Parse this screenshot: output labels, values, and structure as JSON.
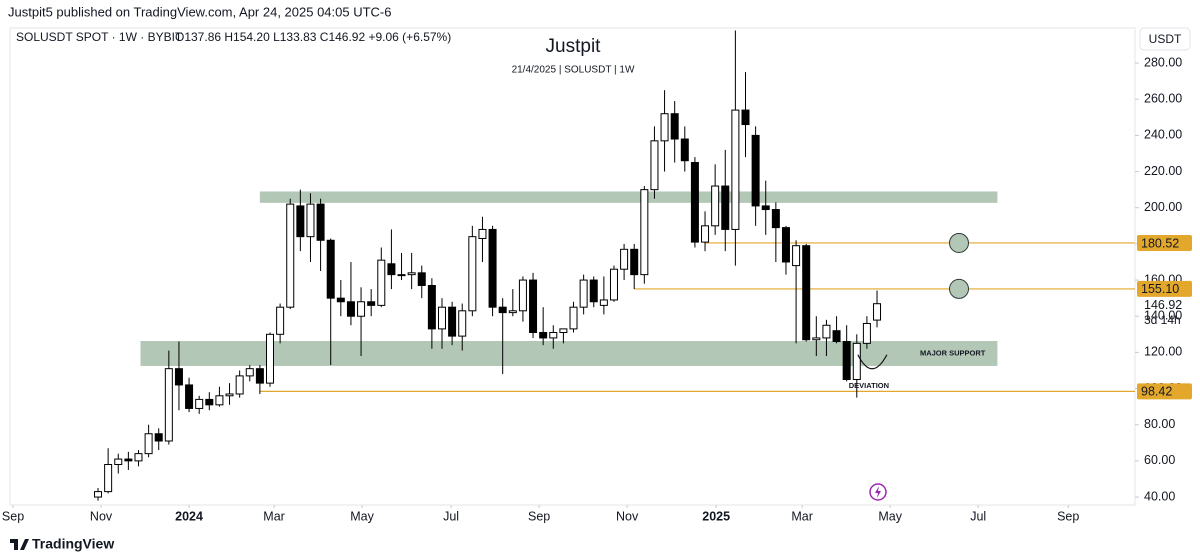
{
  "header": "Justpit5 published on TradingView.com, Apr 24, 2025 04:05 UTC-6",
  "footer": "TradingView",
  "chart_data": {
    "type": "candlestick",
    "title": "Justpit",
    "subtitle": "21/4/2025 | SOLUSDT | 1W",
    "symbol": "SOLUSDT SPOT · 1W · BYBIT",
    "ohlc_text": "O137.86 H154.20 L133.83 C146.92 +9.06 (+6.57%)",
    "axis_unit": "USDT",
    "x": [
      0,
      1,
      2,
      3,
      4,
      5,
      6,
      7,
      8,
      9,
      10,
      11,
      12,
      13,
      14,
      15,
      16,
      17,
      18,
      19,
      20,
      21,
      22,
      23,
      24,
      25,
      26,
      27,
      28,
      29,
      30,
      31,
      32,
      33,
      34,
      35,
      36,
      37,
      38,
      39,
      40,
      41,
      42,
      43,
      44,
      45,
      46,
      47,
      48,
      49,
      50,
      51,
      52,
      53,
      54,
      55,
      56,
      57,
      58,
      59,
      60,
      61,
      62,
      63,
      64,
      65,
      66,
      67,
      68,
      69,
      70,
      71,
      72,
      73,
      74,
      75,
      76,
      77
    ],
    "open": [
      40,
      43,
      58,
      61,
      60,
      64,
      75,
      71,
      111,
      102,
      89,
      94,
      91,
      96,
      97,
      107,
      111,
      103,
      130,
      145,
      201,
      184,
      202,
      182,
      150,
      148,
      140,
      148,
      146,
      169,
      163,
      163,
      164,
      157,
      133,
      145,
      129,
      143,
      183,
      188,
      145,
      142,
      143,
      160,
      131,
      128,
      131,
      133,
      145,
      160,
      146,
      149,
      166,
      177,
      163,
      210,
      237,
      252,
      238,
      225,
      181,
      190,
      212,
      188,
      254,
      240,
      201,
      199,
      189,
      168,
      179,
      127,
      128,
      132,
      126,
      105,
      125,
      137.86
    ],
    "high": [
      45,
      67,
      64,
      65,
      66,
      80,
      78,
      121,
      126,
      106,
      96,
      98,
      101,
      103,
      110,
      113,
      113,
      131,
      147,
      205,
      210,
      208,
      205,
      183,
      160,
      170,
      156,
      155,
      178,
      188,
      175,
      175,
      168,
      161,
      150,
      148,
      147,
      190,
      195,
      190,
      150,
      155,
      162,
      164,
      145,
      135,
      133,
      148,
      163,
      162,
      162,
      168,
      180,
      180,
      212,
      245,
      265,
      259,
      245,
      228,
      198,
      224,
      232,
      298,
      275,
      245,
      215,
      203,
      190,
      182,
      180,
      140,
      138,
      140,
      135,
      130,
      140,
      154.2
    ],
    "low": [
      38,
      42,
      53,
      55,
      57,
      62,
      66,
      69,
      88,
      87,
      86,
      88,
      90,
      91,
      95,
      104,
      97,
      101,
      125,
      144,
      176,
      170,
      165,
      113,
      140,
      135,
      118,
      140,
      145,
      155,
      160,
      155,
      150,
      122,
      122,
      124,
      121,
      140,
      170,
      140,
      108,
      140,
      137,
      128,
      124,
      122,
      125,
      131,
      141,
      145,
      141,
      148,
      160,
      155,
      158,
      205,
      220,
      225,
      220,
      178,
      176,
      185,
      176,
      168,
      228,
      190,
      185,
      170,
      163,
      125,
      126,
      118,
      118,
      125,
      104,
      95,
      122,
      133.83
    ],
    "close": [
      43,
      58,
      61,
      60,
      64,
      75,
      71,
      111,
      102,
      89,
      94,
      91,
      96,
      97,
      107,
      111,
      103,
      130,
      145,
      202,
      184,
      202,
      182,
      150,
      148,
      140,
      148,
      146,
      171,
      163,
      163,
      164,
      157,
      133,
      145,
      129,
      143,
      184,
      188,
      145,
      142,
      143,
      160,
      131,
      128,
      131,
      133,
      145,
      160,
      148,
      149,
      166,
      177,
      163,
      210,
      237,
      252,
      238,
      226,
      181,
      190,
      212,
      188,
      254,
      246,
      201,
      199,
      189,
      170,
      179,
      127,
      128,
      135,
      126,
      105,
      125,
      136,
      146.92
    ],
    "up_color": "#ffffff",
    "down_color": "#000000",
    "xlim": [
      -8.7,
      102.5
    ],
    "xticks": [
      {
        "value": -8.4,
        "label": "Sep"
      },
      {
        "value": 0.3,
        "label": "Nov"
      },
      {
        "value": 9.0,
        "label": "2024"
      },
      {
        "value": 17.4,
        "label": "Mar"
      },
      {
        "value": 26.1,
        "label": "May"
      },
      {
        "value": 34.9,
        "label": "Jul"
      },
      {
        "value": 43.6,
        "label": "Sep"
      },
      {
        "value": 52.3,
        "label": "Nov"
      },
      {
        "value": 61.1,
        "label": "2025"
      },
      {
        "value": 69.6,
        "label": "Mar"
      },
      {
        "value": 78.3,
        "label": "May"
      },
      {
        "value": 87.0,
        "label": "Jul"
      },
      {
        "value": 95.9,
        "label": "Sep"
      }
    ],
    "ylim": [
      35.6,
      299.4
    ],
    "yticks": [
      {
        "value": 40,
        "label": "40.00"
      },
      {
        "value": 60,
        "label": "60.00"
      },
      {
        "value": 80,
        "label": "80.00"
      },
      {
        "value": 100,
        "label": "100.00"
      },
      {
        "value": 120,
        "label": "120.00"
      },
      {
        "value": 140,
        "label": "140.00"
      },
      {
        "value": 160,
        "label": "160.00"
      },
      {
        "value": 180,
        "label": "180.00"
      },
      {
        "value": 200,
        "label": "200.00"
      },
      {
        "value": 220,
        "label": "220.00"
      },
      {
        "value": 240,
        "label": "240.00"
      },
      {
        "value": 260,
        "label": "260.00"
      },
      {
        "value": 280,
        "label": "280.00"
      }
    ],
    "zones": [
      {
        "low": 202.7,
        "high": 209.0,
        "from": 16.0,
        "to": 88.9,
        "color": "#b3c7b6"
      },
      {
        "low": 112.5,
        "high": 126.3,
        "from": 4.2,
        "to": 88.9,
        "color": "#b3c7b6",
        "label": "MAJOR SUPPORT"
      }
    ],
    "levels": [
      {
        "value": 180.52,
        "from": 60,
        "color": "#e3a82b"
      },
      {
        "value": 155.1,
        "label": "155.10",
        "from": 53,
        "color": "#e3a82b"
      },
      {
        "value": 98.42,
        "from": 16,
        "color": "#e3a82b"
      }
    ],
    "last_price": 146.92,
    "countdown": "3d 14h",
    "annotation": "DEVIATION"
  }
}
